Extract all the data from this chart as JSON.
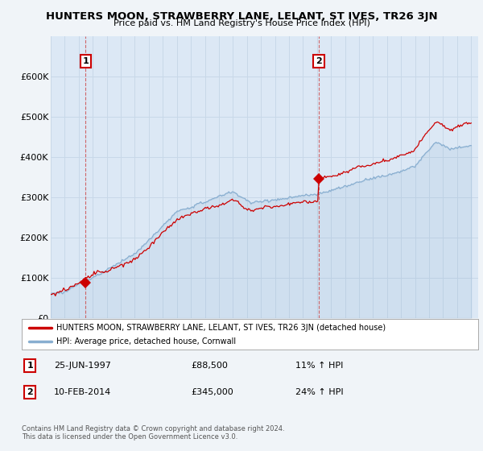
{
  "title": "HUNTERS MOON, STRAWBERRY LANE, LELANT, ST IVES, TR26 3JN",
  "subtitle": "Price paid vs. HM Land Registry's House Price Index (HPI)",
  "house_color": "#cc0000",
  "hpi_color": "#88aed0",
  "background_color": "#f0f4f8",
  "plot_bg_color": "#dce8f5",
  "grid_color": "#c8d8e8",
  "ylim": [
    0,
    700000
  ],
  "yticks": [
    0,
    100000,
    200000,
    300000,
    400000,
    500000,
    600000
  ],
  "ytick_labels": [
    "£0",
    "£100K",
    "£200K",
    "£300K",
    "£400K",
    "£500K",
    "£600K"
  ],
  "sale1_price": 88500,
  "sale1_year": 1997.48,
  "sale2_price": 345000,
  "sale2_year": 2014.12,
  "legend_house": "HUNTERS MOON, STRAWBERRY LANE, LELANT, ST IVES, TR26 3JN (detached house)",
  "legend_hpi": "HPI: Average price, detached house, Cornwall",
  "footer": "Contains HM Land Registry data © Crown copyright and database right 2024.\nThis data is licensed under the Open Government Licence v3.0.",
  "xmin": 1995,
  "xmax": 2025.5
}
